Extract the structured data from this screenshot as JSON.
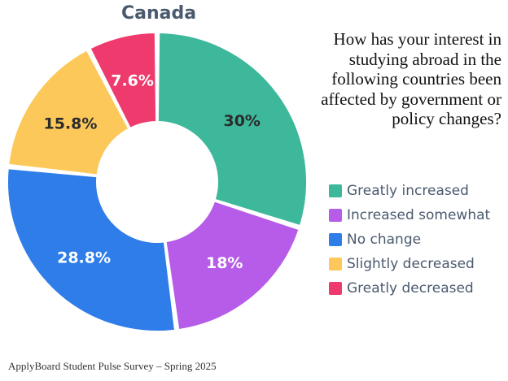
{
  "chart_data": {
    "type": "pie",
    "variant": "donut",
    "title": "Canada",
    "question": "How has your interest in studying abroad in the following countries been affected by government or policy changes?",
    "slices": [
      {
        "label": "Greatly increased",
        "value": 30,
        "value_label": "30%",
        "color": "#3db89b"
      },
      {
        "label": "Increased somewhat",
        "value": 18,
        "value_label": "18%",
        "color": "#b65ce8"
      },
      {
        "label": "No change",
        "value": 28.8,
        "value_label": "28.8%",
        "color": "#2e7de9"
      },
      {
        "label": "Slightly decreased",
        "value": 15.8,
        "value_label": "15.8%",
        "color": "#fcc85a"
      },
      {
        "label": "Greatly decreased",
        "value": 7.6,
        "value_label": "7.6%",
        "color": "#ee3a6d"
      }
    ],
    "legend_position": "right",
    "label_colors": {
      "light": "#ffffff",
      "dark": "#2b2b2b"
    }
  },
  "footer": {
    "source": "ApplyBoard Student Pulse Survey – Spring 2025"
  }
}
